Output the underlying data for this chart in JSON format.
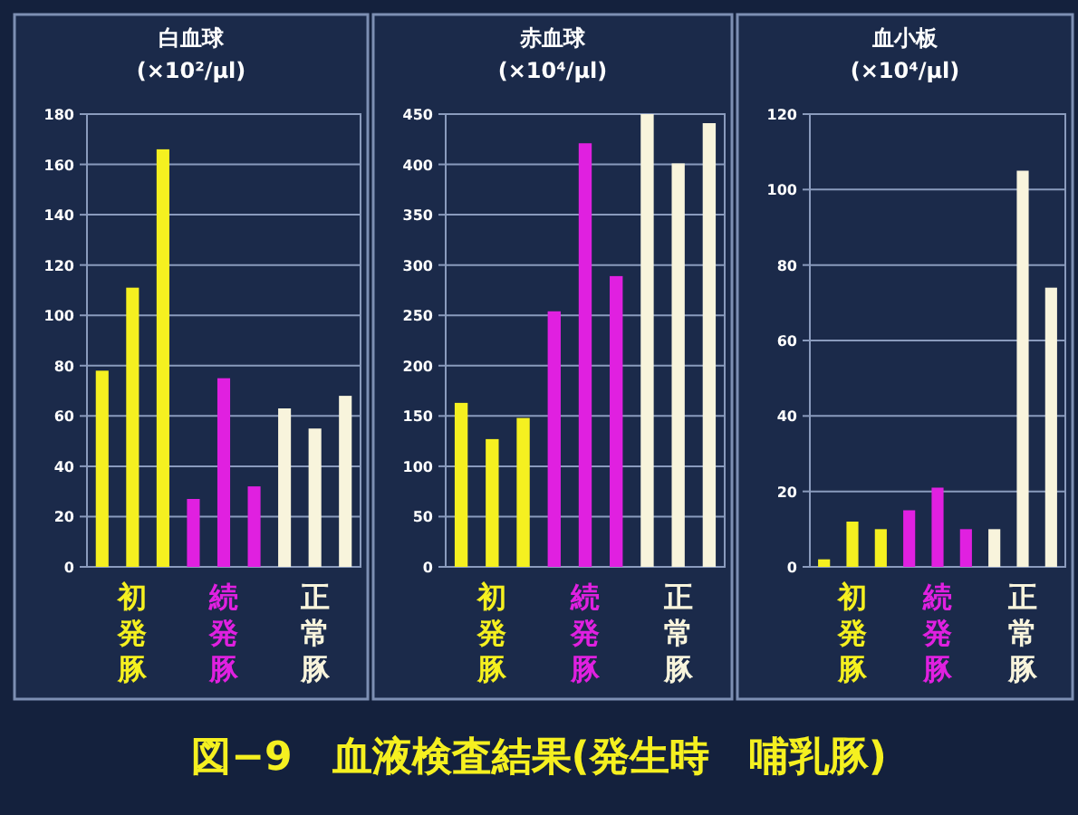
{
  "chart_data": [
    {
      "type": "bar",
      "title": "白血球",
      "subtitle": "(×10²/μl)",
      "categories": [
        null,
        "初発豚",
        null,
        null,
        "続発豚",
        null,
        null,
        "正常豚",
        null
      ],
      "values": [
        78,
        111,
        166,
        27,
        75,
        32,
        63,
        55,
        68
      ],
      "colors": [
        "#f5f020",
        "#f5f020",
        "#f5f020",
        "#e020e0",
        "#e020e0",
        "#e020e0",
        "#f8f4dc",
        "#f8f4dc",
        "#f8f4dc"
      ],
      "ylim": [
        0,
        180
      ],
      "yticks": [
        0,
        20,
        40,
        60,
        80,
        100,
        120,
        140,
        160,
        180
      ],
      "grid": "y",
      "annotations": [
        "図−9　血液検査結果(発生時　哺乳豚)"
      ]
    },
    {
      "type": "bar",
      "title": "赤血球",
      "subtitle": "(×10⁴/μl)",
      "categories": [
        null,
        "初発豚",
        null,
        null,
        "続発豚",
        null,
        null,
        "正常豚",
        null
      ],
      "values": [
        163,
        127,
        148,
        254,
        421,
        289,
        450,
        401,
        441
      ],
      "colors": [
        "#f5f020",
        "#f5f020",
        "#f5f020",
        "#e020e0",
        "#e020e0",
        "#e020e0",
        "#f8f4dc",
        "#f8f4dc",
        "#f8f4dc"
      ],
      "ylim": [
        0,
        450
      ],
      "yticks": [
        0,
        50,
        100,
        150,
        200,
        250,
        300,
        350,
        400,
        450
      ],
      "grid": "y"
    },
    {
      "type": "bar",
      "title": "血小板",
      "subtitle": "(×10⁴/μl)",
      "categories": [
        null,
        "初発豚",
        null,
        null,
        "続発豚",
        null,
        null,
        "正常豚",
        null
      ],
      "values": [
        2,
        12,
        10,
        15,
        21,
        10,
        10,
        105,
        74
      ],
      "colors": [
        "#f5f020",
        "#f5f020",
        "#f5f020",
        "#e020e0",
        "#e020e0",
        "#e020e0",
        "#f8f4dc",
        "#f8f4dc",
        "#f8f4dc"
      ],
      "ylim": [
        0,
        120
      ],
      "yticks": [
        0,
        20,
        40,
        60,
        80,
        100,
        120
      ],
      "grid": "y"
    }
  ]
}
